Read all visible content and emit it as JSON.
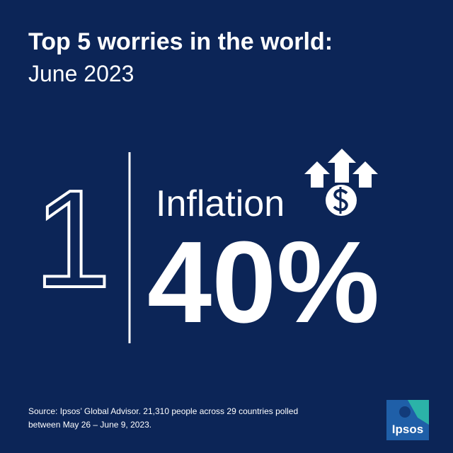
{
  "header": {
    "title": "Top 5 worries in the world:",
    "subtitle": "June 2023"
  },
  "item": {
    "rank": "1",
    "name": "Inflation",
    "value": "40%"
  },
  "source": {
    "lines": [
      "Source: Ipsos’ Global Advisor. 21,310 people across 29 countries polled",
      "between May 26 – June 9, 2023."
    ]
  },
  "logo": {
    "text": "Ipsos"
  }
}
